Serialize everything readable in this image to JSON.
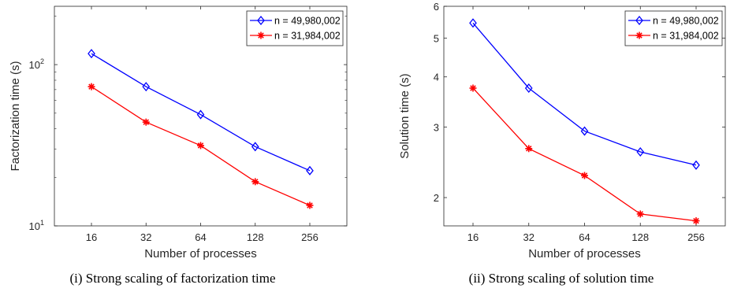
{
  "colors": {
    "series_1": "#0000ff",
    "series_2": "#ff0000",
    "axis": "#262626"
  },
  "chart_data": [
    {
      "type": "line",
      "caption": "(i) Strong scaling of factorization time",
      "xlabel": "Number of processes",
      "ylabel": "Factorization time (s)",
      "x": [
        16,
        32,
        64,
        128,
        256
      ],
      "x_ticks": [
        "16",
        "32",
        "64",
        "128",
        "256"
      ],
      "x_scale": "log2",
      "y_scale": "log",
      "ylim": [
        10,
        230
      ],
      "y_ticks": [
        {
          "base": "10",
          "exp": "1",
          "value": 10
        },
        {
          "base": "10",
          "exp": "2",
          "value": 100
        }
      ],
      "grid": false,
      "legend_position": "top-right",
      "series": [
        {
          "name": "n = 49,980,002",
          "marker": "diamond",
          "color": "#0000ff",
          "values": [
            117,
            73,
            49,
            31,
            22
          ]
        },
        {
          "name": "n = 31,984,002",
          "marker": "asterisk",
          "color": "#ff0000",
          "values": [
            73,
            44,
            31.5,
            18.8,
            13.4
          ]
        }
      ]
    },
    {
      "type": "line",
      "caption": "(ii) Strong scaling of solution time",
      "xlabel": "Number of processes",
      "ylabel": "Solution time (s)",
      "x": [
        16,
        32,
        64,
        128,
        256
      ],
      "x_ticks": [
        "16",
        "32",
        "64",
        "128",
        "256"
      ],
      "x_scale": "log2",
      "y_scale": "log",
      "ylim": [
        1.7,
        6
      ],
      "y_ticks": [
        {
          "label": "2",
          "value": 2
        },
        {
          "label": "3",
          "value": 3
        },
        {
          "label": "4",
          "value": 4
        },
        {
          "label": "5",
          "value": 5
        },
        {
          "label": "6",
          "value": 6
        }
      ],
      "grid": false,
      "legend_position": "top-right",
      "series": [
        {
          "name": "n = 49,980,002",
          "marker": "diamond",
          "color": "#0000ff",
          "values": [
            5.45,
            3.75,
            2.93,
            2.6,
            2.41
          ]
        },
        {
          "name": "n = 31,984,002",
          "marker": "asterisk",
          "color": "#ff0000",
          "values": [
            3.75,
            2.65,
            2.27,
            1.82,
            1.75
          ]
        }
      ]
    }
  ]
}
